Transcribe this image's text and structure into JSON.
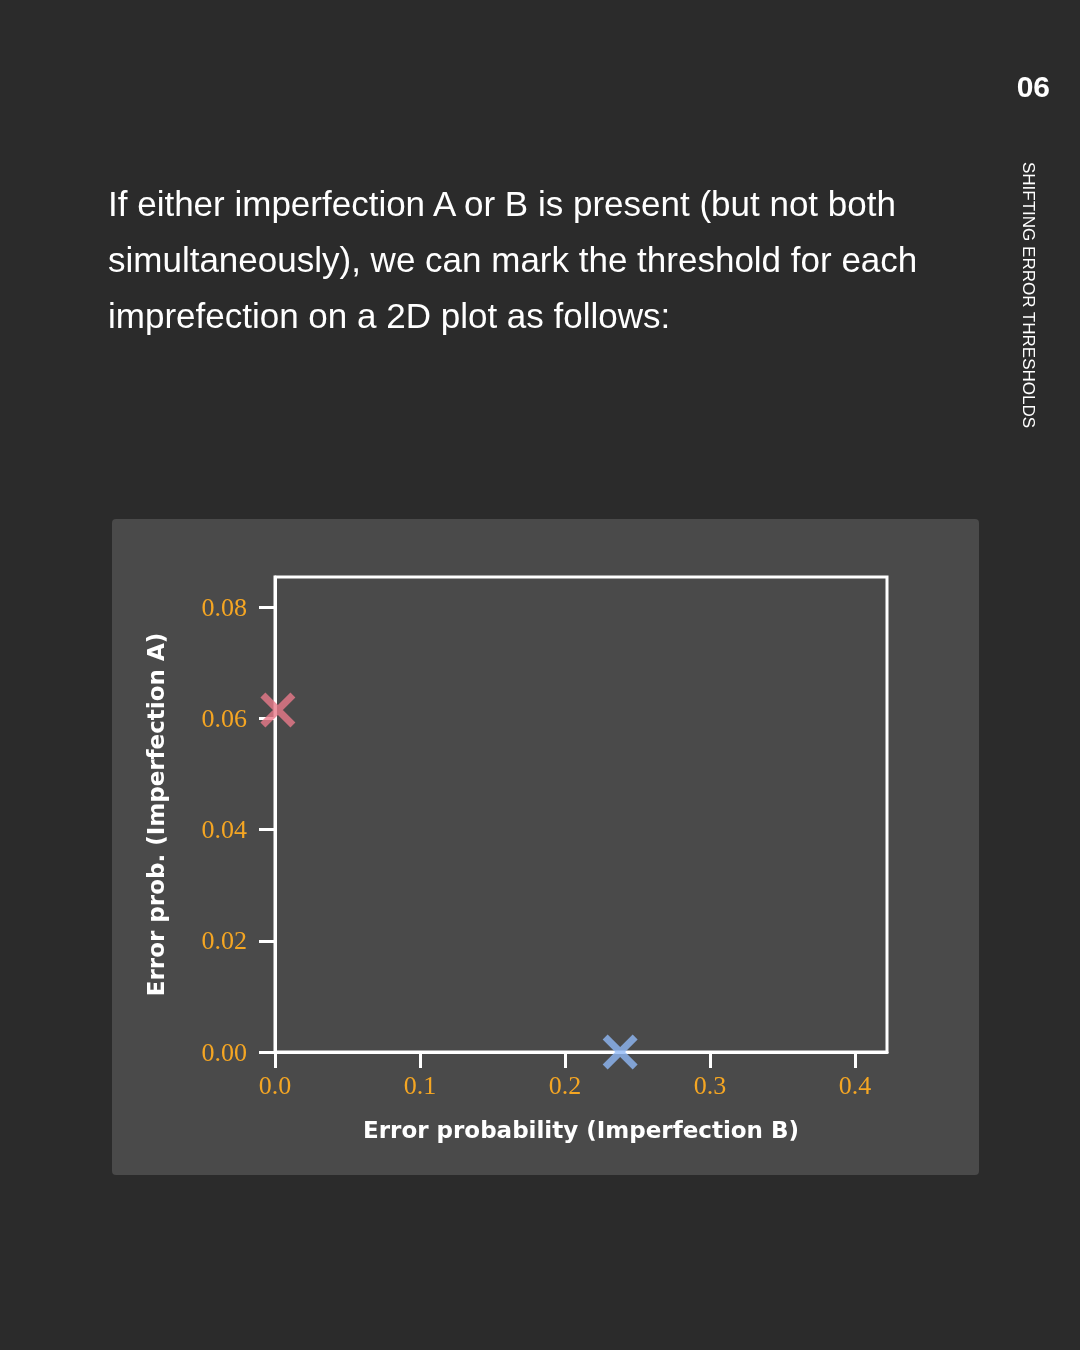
{
  "chart_data": {
    "type": "scatter",
    "title": "If either imperfection A or B is present (but not both simultaneously), we can mark the threshold for each imprefection on a 2D plot as follows:",
    "annotations": [
      "06",
      "SHIFTING ERROR THRESHOLDS"
    ],
    "xlabel": "Error probability (Imperfection B)",
    "ylabel": "Error prob. (Imperfection A)",
    "series": [
      {
        "x": [
          0.002,
          0.238
        ],
        "values": [
          0.0615,
          0.0
        ],
        "colors": [
          "#e8798a",
          "#8fb8f5"
        ]
      }
    ],
    "xlim": [
      0,
      0.422
    ],
    "xticks": [
      {
        "value": 0,
        "label": "0.0"
      },
      {
        "value": 0.1,
        "label": "0.1"
      },
      {
        "value": 0.2,
        "label": "0.2"
      },
      {
        "value": 0.3,
        "label": "0.3"
      },
      {
        "value": 0.4,
        "label": "0.4"
      }
    ],
    "ylim": [
      0,
      0.0854
    ],
    "yticks": [
      {
        "value": 0,
        "label": "0.00"
      },
      {
        "value": 0.02,
        "label": "0.02"
      },
      {
        "value": 0.04,
        "label": "0.04"
      },
      {
        "value": 0.06,
        "label": "0.06"
      },
      {
        "value": 0.08,
        "label": "0.08"
      }
    ],
    "grid": false,
    "marker": "cross"
  }
}
